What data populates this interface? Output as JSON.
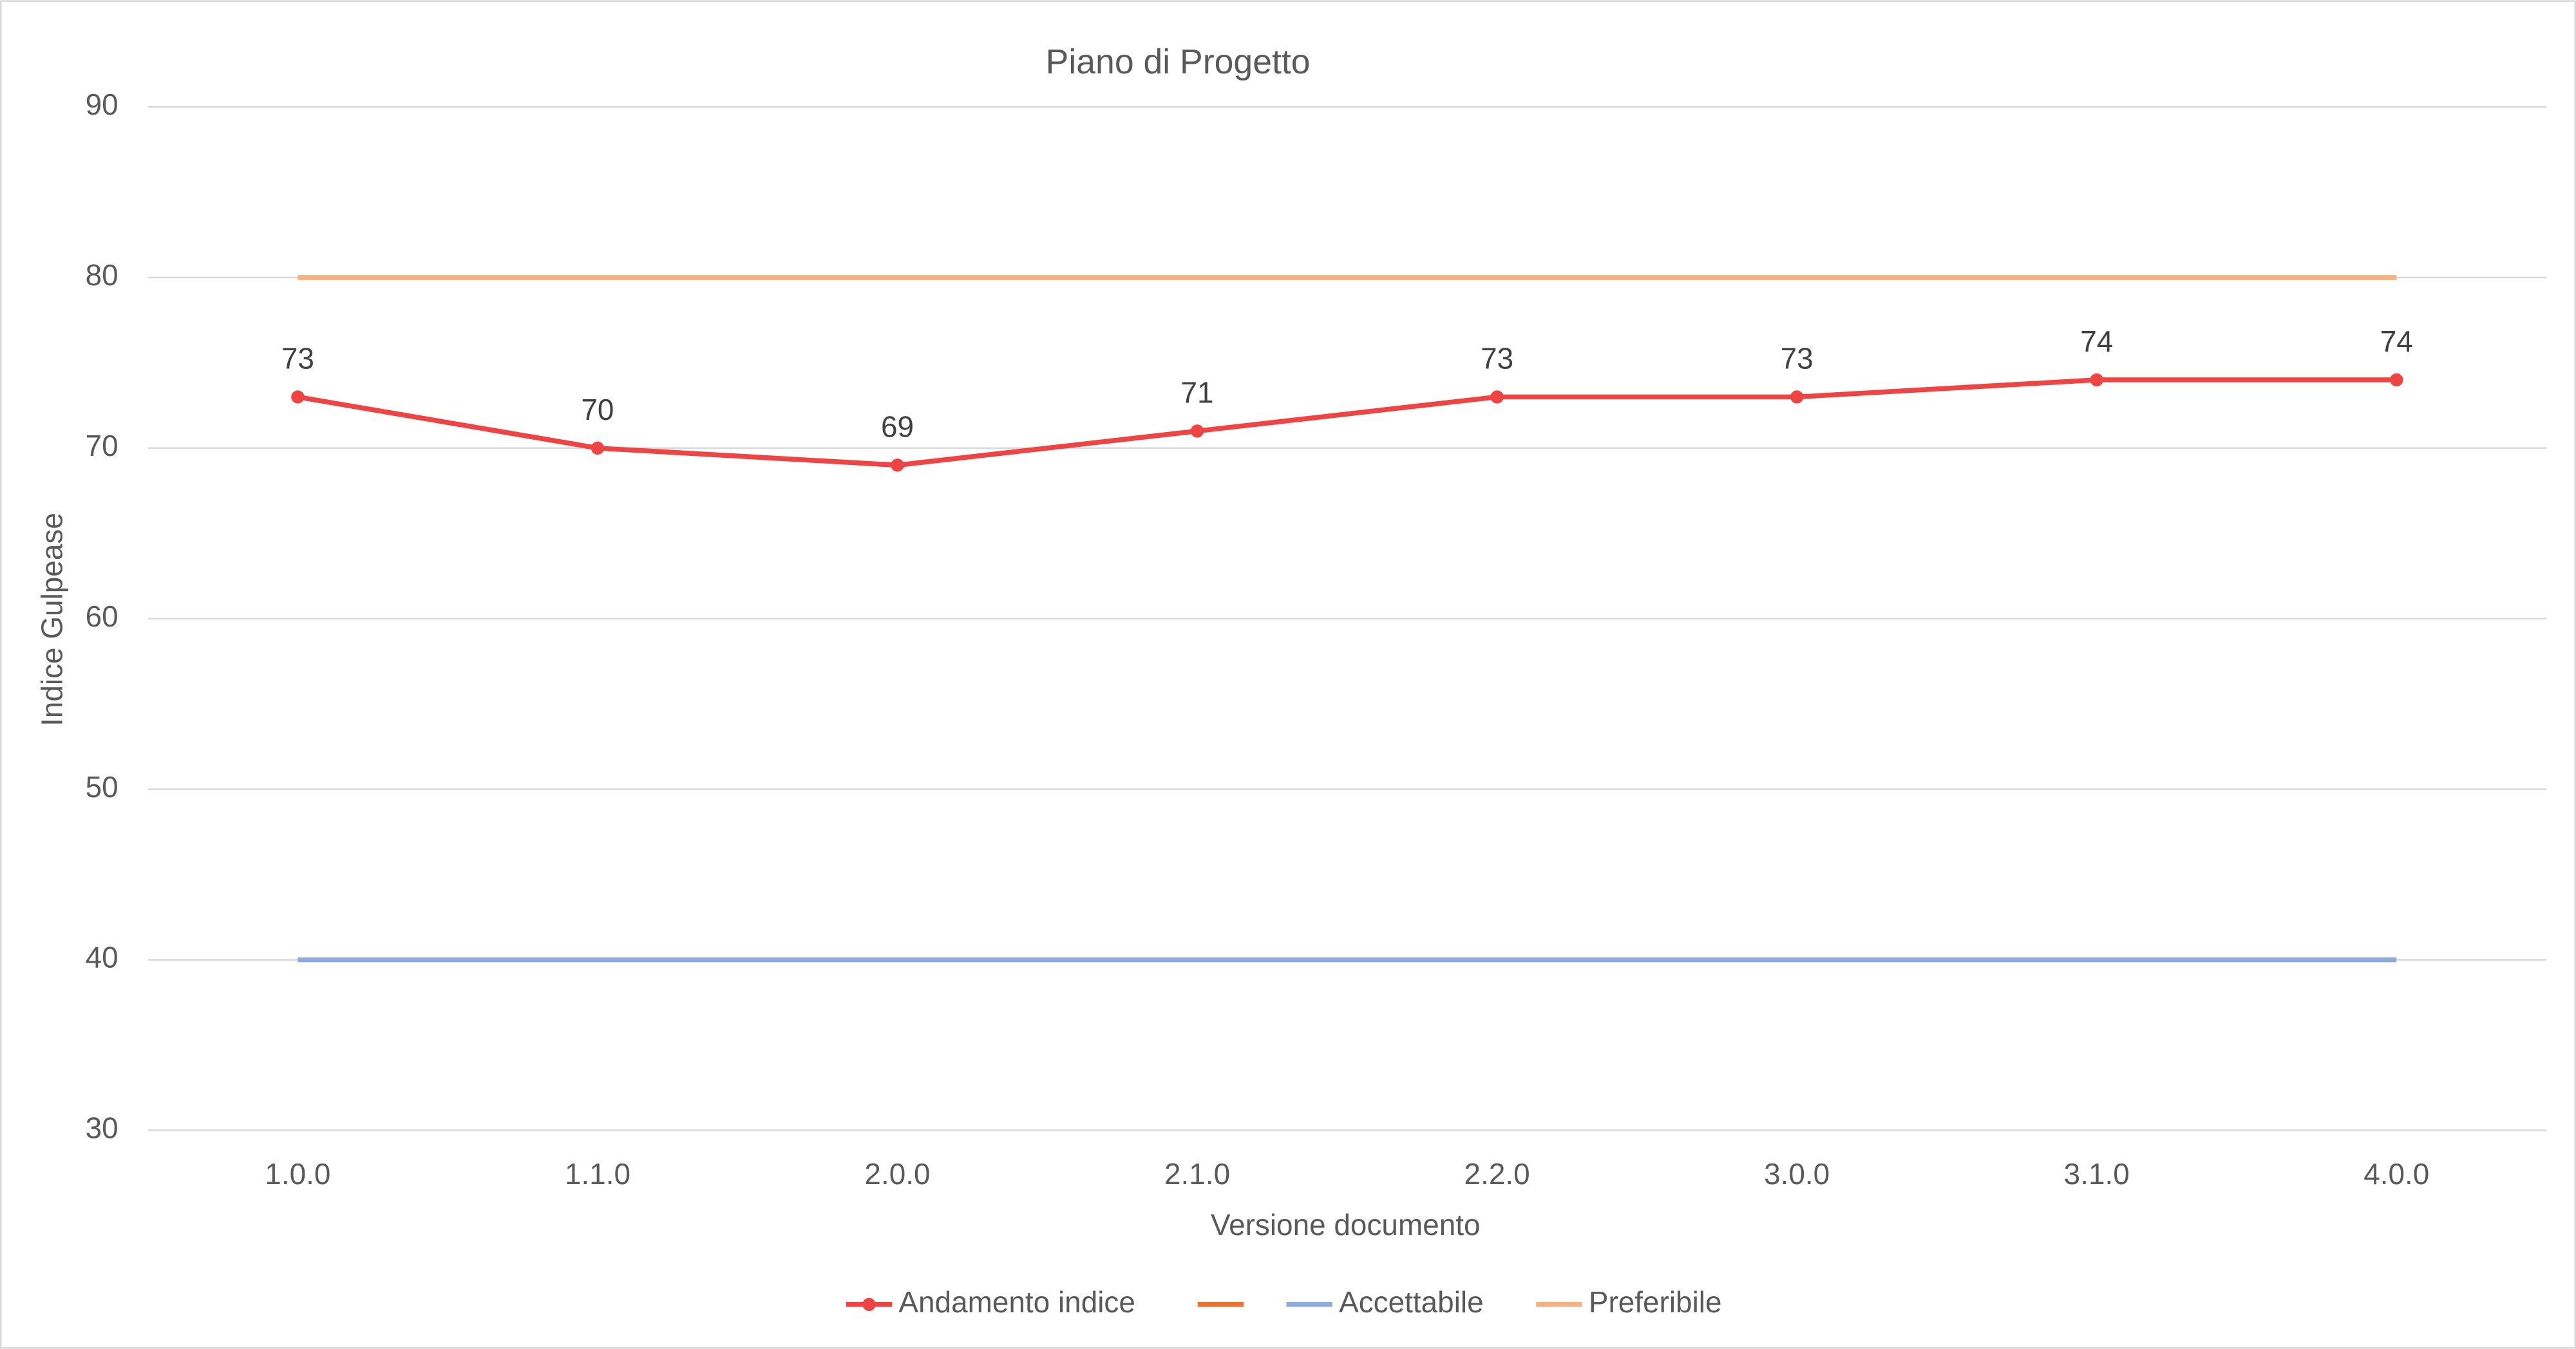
{
  "chart_data": {
    "type": "line",
    "title": "Piano di Progetto",
    "x_label": "Versione documento",
    "y_label": "Indice Gulpease",
    "categories": [
      "1.0.0",
      "1.1.0",
      "2.0.0",
      "2.1.0",
      "2.2.0",
      "3.0.0",
      "3.1.0",
      "4.0.0"
    ],
    "series": [
      {
        "name": "Andamento indice",
        "color": "#ef4444",
        "markers": true,
        "labels": true,
        "values": [
          73,
          70,
          69,
          71,
          73,
          73,
          74,
          74
        ]
      },
      {
        "color": "#e97132"
      },
      {
        "name": "Accettabile",
        "color": "#8faadc",
        "values": [
          40,
          40,
          40,
          40,
          40,
          40,
          40,
          40
        ]
      },
      {
        "name": "Preferibile",
        "color": "#f4b183",
        "values": [
          80,
          80,
          80,
          80,
          80,
          80,
          80,
          80
        ]
      }
    ],
    "ylim": [
      30,
      90
    ],
    "yticks": [
      30,
      40,
      50,
      60,
      70,
      80,
      90
    ],
    "grid": true,
    "legend": "bottom"
  }
}
